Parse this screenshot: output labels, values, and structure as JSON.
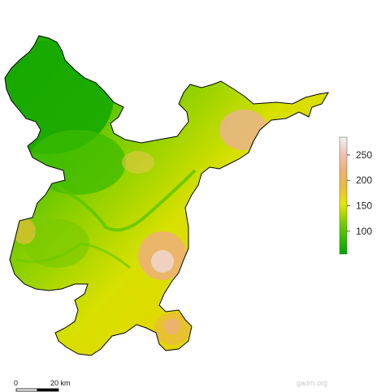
{
  "map": {
    "legend": {
      "min": 55,
      "max": 285,
      "ticks": [
        {
          "value": 100,
          "label": "100"
        },
        {
          "value": 150,
          "label": "150"
        },
        {
          "value": 200,
          "label": "200"
        },
        {
          "value": 250,
          "label": "250"
        }
      ],
      "colors": [
        "#00a600",
        "#3cbb00",
        "#87cf00",
        "#e6e600",
        "#e9bd3a",
        "#ecb176",
        "#efc2b3",
        "#f2f2f2"
      ]
    },
    "scale_bar": {
      "start_label": "0",
      "end_label": "20 km"
    },
    "credit": "gadm.org"
  }
}
